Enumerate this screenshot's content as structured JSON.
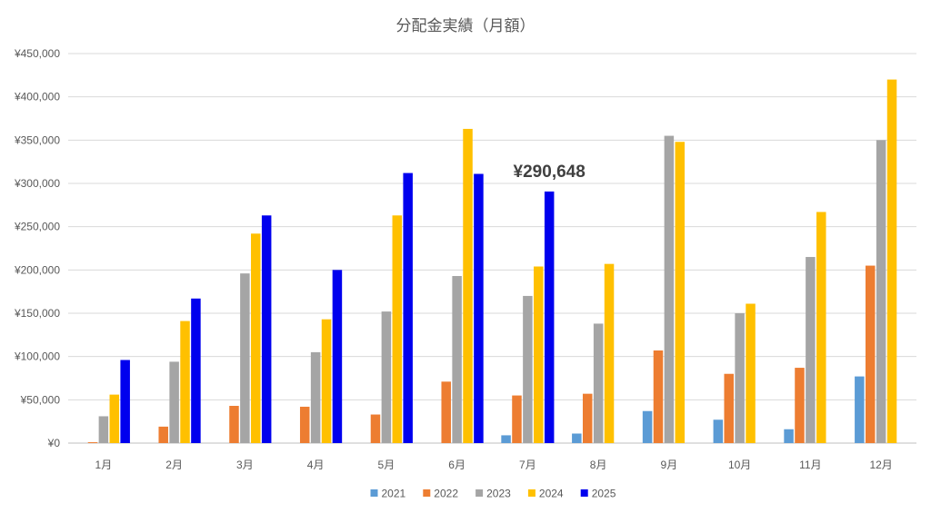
{
  "chart_data": {
    "type": "bar",
    "title": "分配金実績（月額）",
    "xlabel": "",
    "ylabel": "",
    "ylim": [
      0,
      450000
    ],
    "yticks": [
      0,
      50000,
      100000,
      150000,
      200000,
      250000,
      300000,
      350000,
      400000,
      450000
    ],
    "ytick_labels": [
      "¥0",
      "¥50,000",
      "¥100,000",
      "¥150,000",
      "¥200,000",
      "¥250,000",
      "¥300,000",
      "¥350,000",
      "¥400,000",
      "¥450,000"
    ],
    "categories": [
      "1月",
      "2月",
      "3月",
      "4月",
      "5月",
      "6月",
      "7月",
      "8月",
      "9月",
      "10月",
      "11月",
      "12月"
    ],
    "grid": true,
    "legend_position": "bottom",
    "series": [
      {
        "name": "2021",
        "color": "#5b9bd5",
        "values": [
          0,
          0,
          0,
          0,
          0,
          0,
          9000,
          11000,
          37000,
          27000,
          16000,
          77000
        ]
      },
      {
        "name": "2022",
        "color": "#ed7d31",
        "values": [
          1000,
          19000,
          43000,
          42000,
          33000,
          71000,
          55000,
          57000,
          107000,
          80000,
          87000,
          205000
        ]
      },
      {
        "name": "2023",
        "color": "#a5a5a5",
        "values": [
          31000,
          94000,
          196000,
          105000,
          152000,
          193000,
          170000,
          138000,
          355000,
          150000,
          215000,
          350000
        ]
      },
      {
        "name": "2024",
        "color": "#ffc000",
        "values": [
          56000,
          141000,
          242000,
          143000,
          263000,
          363000,
          204000,
          207000,
          348000,
          161000,
          267000,
          420000
        ]
      },
      {
        "name": "2025",
        "color": "#0000ee",
        "values": [
          96000,
          167000,
          263000,
          200000,
          312000,
          311000,
          290648,
          null,
          null,
          null,
          null,
          null
        ]
      }
    ],
    "annotations": [
      {
        "text": "¥290,648",
        "series": "2025",
        "category": "7月"
      }
    ]
  }
}
